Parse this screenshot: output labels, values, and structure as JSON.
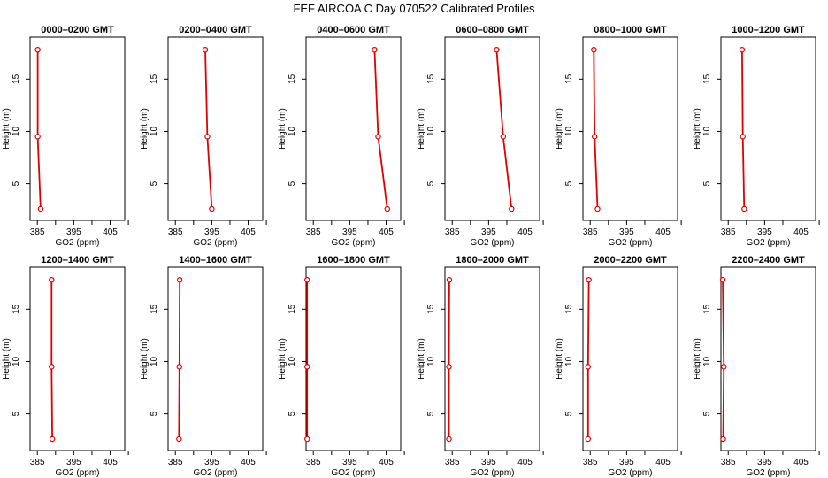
{
  "figure_title": "FEF AIRCOA C  Day 070522  Calibrated Profiles",
  "colors": {
    "profile": "#e00000",
    "axis": "#000000"
  },
  "chart_data": [
    {
      "type": "line",
      "title": "0000–0200 GMT",
      "xlabel": "GO2 (ppm)",
      "ylabel": "Height (m)",
      "xlim": [
        383,
        409
      ],
      "ylim": [
        1.5,
        19
      ],
      "xticks": [
        385,
        390,
        395,
        400,
        405,
        410
      ],
      "xtick_labels": [
        "385",
        "",
        "395",
        "",
        "405",
        ""
      ],
      "yticks": [
        5,
        10,
        15
      ],
      "points": [
        {
          "x": 385.1,
          "y": 17.8
        },
        {
          "x": 385.1,
          "y": 9.5
        },
        {
          "x": 385.9,
          "y": 2.6
        }
      ]
    },
    {
      "type": "line",
      "title": "0200–0400 GMT",
      "xlabel": "GO2 (ppm)",
      "ylabel": "Height (m)",
      "xlim": [
        383,
        409
      ],
      "ylim": [
        1.5,
        19
      ],
      "xticks": [
        385,
        390,
        395,
        400,
        405,
        410
      ],
      "xtick_labels": [
        "385",
        "",
        "395",
        "",
        "405",
        ""
      ],
      "yticks": [
        5,
        10,
        15
      ],
      "points": [
        {
          "x": 393.2,
          "y": 17.8
        },
        {
          "x": 393.8,
          "y": 9.5
        },
        {
          "x": 395.0,
          "y": 2.6
        }
      ]
    },
    {
      "type": "line",
      "title": "0400–0600 GMT",
      "xlabel": "GO2 (ppm)",
      "ylabel": "Height (m)",
      "xlim": [
        383,
        409
      ],
      "ylim": [
        1.5,
        19
      ],
      "xticks": [
        385,
        390,
        395,
        400,
        405,
        410
      ],
      "xtick_labels": [
        "385",
        "",
        "395",
        "",
        "405",
        ""
      ],
      "yticks": [
        5,
        10,
        15
      ],
      "points": [
        {
          "x": 401.8,
          "y": 17.8
        },
        {
          "x": 402.8,
          "y": 9.5
        },
        {
          "x": 405.3,
          "y": 2.6
        }
      ]
    },
    {
      "type": "line",
      "title": "0600–0800 GMT",
      "xlabel": "GO2 (ppm)",
      "ylabel": "Height (m)",
      "xlim": [
        383,
        409
      ],
      "ylim": [
        1.5,
        19
      ],
      "xticks": [
        385,
        390,
        395,
        400,
        405,
        410
      ],
      "xtick_labels": [
        "385",
        "",
        "395",
        "",
        "405",
        ""
      ],
      "yticks": [
        5,
        10,
        15
      ],
      "points": [
        {
          "x": 397.2,
          "y": 17.8
        },
        {
          "x": 399.0,
          "y": 9.5
        },
        {
          "x": 401.3,
          "y": 2.6
        }
      ]
    },
    {
      "type": "line",
      "title": "0800–1000 GMT",
      "xlabel": "GO2 (ppm)",
      "ylabel": "Height (m)",
      "xlim": [
        383,
        409
      ],
      "ylim": [
        1.5,
        19
      ],
      "xticks": [
        385,
        390,
        395,
        400,
        405,
        410
      ],
      "xtick_labels": [
        "385",
        "",
        "395",
        "",
        "405",
        ""
      ],
      "yticks": [
        5,
        10,
        15
      ],
      "points": [
        {
          "x": 386.0,
          "y": 17.8
        },
        {
          "x": 386.2,
          "y": 9.5
        },
        {
          "x": 387.0,
          "y": 2.6
        }
      ]
    },
    {
      "type": "line",
      "title": "1000–1200 GMT",
      "xlabel": "GO2 (ppm)",
      "ylabel": "Height (m)",
      "xlim": [
        383,
        409
      ],
      "ylim": [
        1.5,
        19
      ],
      "xticks": [
        385,
        390,
        395,
        400,
        405,
        410
      ],
      "xtick_labels": [
        "385",
        "",
        "395",
        "",
        "405",
        ""
      ],
      "yticks": [
        5,
        10,
        15
      ],
      "points": [
        {
          "x": 388.8,
          "y": 17.8
        },
        {
          "x": 389.0,
          "y": 9.5
        },
        {
          "x": 389.4,
          "y": 2.6
        }
      ]
    },
    {
      "type": "line",
      "title": "1200–1400 GMT",
      "xlabel": "GO2 (ppm)",
      "ylabel": "Height (m)",
      "xlim": [
        383,
        409
      ],
      "ylim": [
        1.5,
        19
      ],
      "xticks": [
        385,
        390,
        395,
        400,
        405,
        410
      ],
      "xtick_labels": [
        "385",
        "",
        "395",
        "",
        "405",
        ""
      ],
      "yticks": [
        5,
        10,
        15
      ],
      "points": [
        {
          "x": 388.9,
          "y": 17.8
        },
        {
          "x": 388.9,
          "y": 9.5
        },
        {
          "x": 389.1,
          "y": 2.6
        }
      ]
    },
    {
      "type": "line",
      "title": "1400–1600 GMT",
      "xlabel": "GO2 (ppm)",
      "ylabel": "Height (m)",
      "xlim": [
        383,
        409
      ],
      "ylim": [
        1.5,
        19
      ],
      "xticks": [
        385,
        390,
        395,
        400,
        405,
        410
      ],
      "xtick_labels": [
        "385",
        "",
        "395",
        "",
        "405",
        ""
      ],
      "yticks": [
        5,
        10,
        15
      ],
      "points": [
        {
          "x": 386.2,
          "y": 17.8
        },
        {
          "x": 386.1,
          "y": 9.5
        },
        {
          "x": 386.0,
          "y": 2.6
        }
      ]
    },
    {
      "type": "line",
      "title": "1600–1800 GMT",
      "xlabel": "GO2 (ppm)",
      "ylabel": "Height (m)",
      "xlim": [
        383,
        409
      ],
      "ylim": [
        1.5,
        19
      ],
      "xticks": [
        385,
        390,
        395,
        400,
        405,
        410
      ],
      "xtick_labels": [
        "385",
        "",
        "395",
        "",
        "405",
        ""
      ],
      "yticks": [
        5,
        10,
        15
      ],
      "points": [
        {
          "x": 383.3,
          "y": 17.8
        },
        {
          "x": 383.3,
          "y": 9.5
        },
        {
          "x": 383.3,
          "y": 2.6
        }
      ]
    },
    {
      "type": "line",
      "title": "1800–2000 GMT",
      "xlabel": "GO2 (ppm)",
      "ylabel": "Height (m)",
      "xlim": [
        383,
        409
      ],
      "ylim": [
        1.5,
        19
      ],
      "xticks": [
        385,
        390,
        395,
        400,
        405,
        410
      ],
      "xtick_labels": [
        "385",
        "",
        "395",
        "",
        "405",
        ""
      ],
      "yticks": [
        5,
        10,
        15
      ],
      "points": [
        {
          "x": 384.2,
          "y": 17.8
        },
        {
          "x": 384.1,
          "y": 9.5
        },
        {
          "x": 384.1,
          "y": 2.6
        }
      ]
    },
    {
      "type": "line",
      "title": "2000–2200 GMT",
      "xlabel": "GO2 (ppm)",
      "ylabel": "Height (m)",
      "xlim": [
        383,
        409
      ],
      "ylim": [
        1.5,
        19
      ],
      "xticks": [
        385,
        390,
        395,
        400,
        405,
        410
      ],
      "xtick_labels": [
        "385",
        "",
        "395",
        "",
        "405",
        ""
      ],
      "yticks": [
        5,
        10,
        15
      ],
      "points": [
        {
          "x": 384.6,
          "y": 17.8
        },
        {
          "x": 384.4,
          "y": 9.5
        },
        {
          "x": 384.4,
          "y": 2.6
        }
      ]
    },
    {
      "type": "line",
      "title": "2200–2400 GMT",
      "xlabel": "GO2 (ppm)",
      "ylabel": "Height (m)",
      "xlim": [
        383,
        409
      ],
      "ylim": [
        1.5,
        19
      ],
      "xticks": [
        385,
        390,
        395,
        400,
        405,
        410
      ],
      "xtick_labels": [
        "385",
        "",
        "395",
        "",
        "405",
        ""
      ],
      "yticks": [
        5,
        10,
        15
      ],
      "points": [
        {
          "x": 383.5,
          "y": 17.8
        },
        {
          "x": 383.8,
          "y": 9.5
        },
        {
          "x": 383.6,
          "y": 2.6
        }
      ]
    }
  ]
}
